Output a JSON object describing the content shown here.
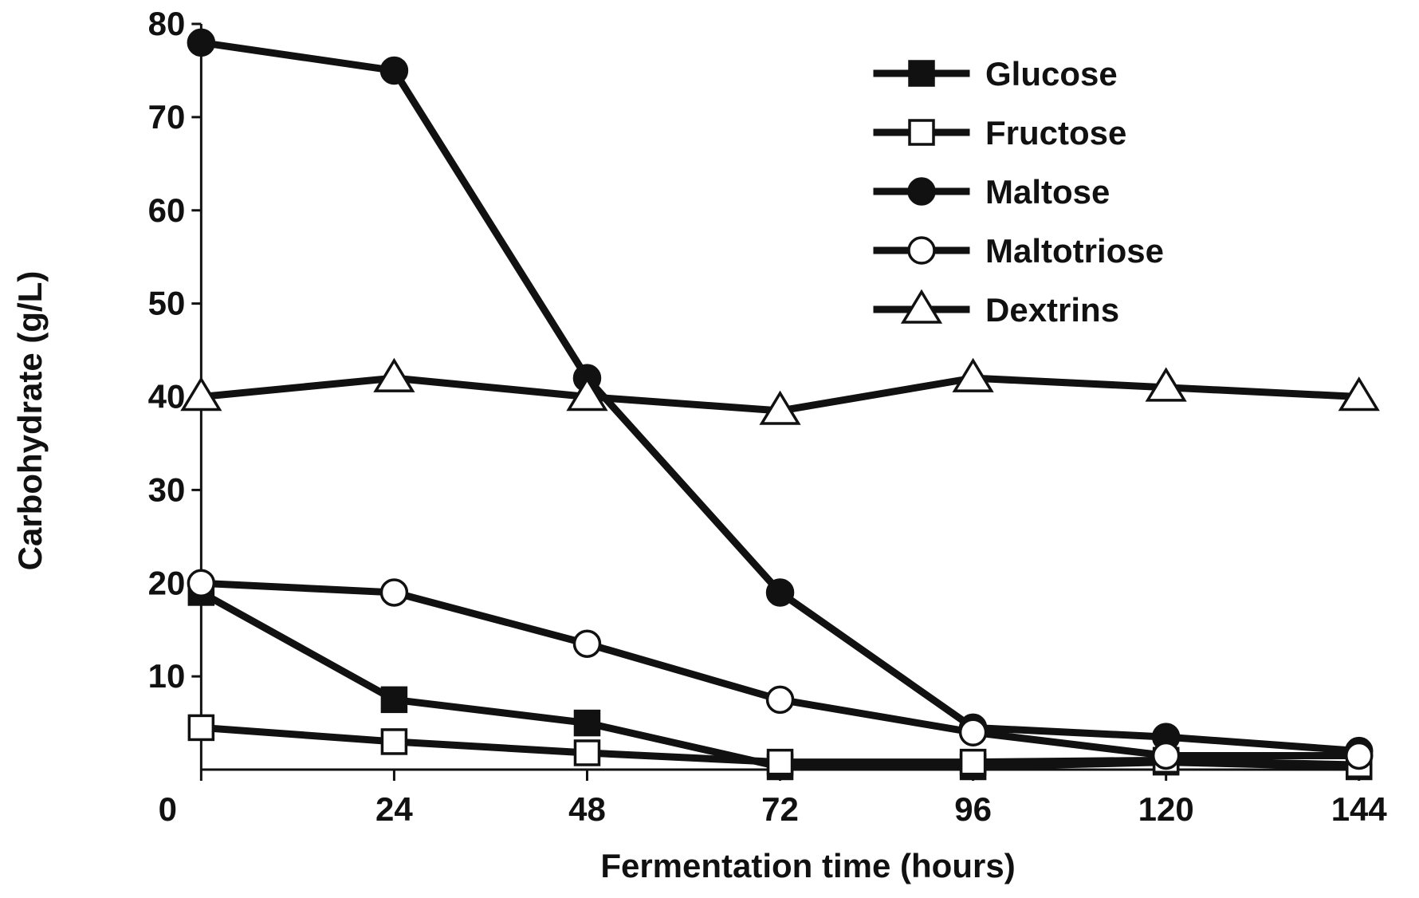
{
  "chart_data": {
    "type": "line",
    "title": "",
    "xlabel": "Fermentation time (hours)",
    "ylabel": "Carbohydrate (g/L)",
    "x": [
      0,
      24,
      48,
      72,
      96,
      120,
      144
    ],
    "xticks": [
      "0",
      "24",
      "48",
      "72",
      "96",
      "120",
      "144"
    ],
    "yticks": [
      "10",
      "20",
      "30",
      "40",
      "50",
      "60",
      "70",
      "80"
    ],
    "xlim": [
      -4,
      147
    ],
    "ylim": [
      0,
      80
    ],
    "grid": false,
    "legend_position": "top-right",
    "series": [
      {
        "name": "Glucose",
        "marker": "square-filled",
        "values": [
          19,
          7.5,
          5,
          0.3,
          0.3,
          0.8,
          0.3
        ]
      },
      {
        "name": "Fructose",
        "marker": "square-open",
        "values": [
          4.5,
          3,
          1.8,
          0.8,
          0.8,
          1,
          0.5
        ]
      },
      {
        "name": "Maltose",
        "marker": "circle-filled",
        "values": [
          78,
          75,
          42,
          19,
          4.5,
          3.5,
          2
        ]
      },
      {
        "name": "Maltotriose",
        "marker": "circle-open",
        "values": [
          20,
          19,
          13.5,
          7.5,
          4,
          1.5,
          1.5
        ]
      },
      {
        "name": "Dextrins",
        "marker": "triangle-open",
        "values": [
          40,
          42,
          40,
          38.5,
          42,
          41,
          40
        ]
      }
    ]
  }
}
